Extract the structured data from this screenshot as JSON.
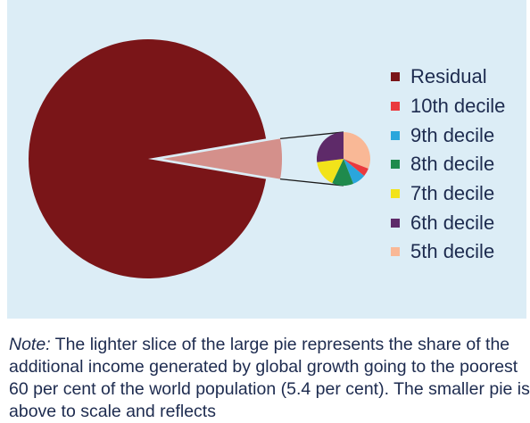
{
  "chart_data": {
    "type": "pie",
    "title": "",
    "main_pie": {
      "slices": [
        {
          "label": "Residual",
          "value": 94.6,
          "color": "#7a1518"
        },
        {
          "label": "Poorest 60 per cent",
          "value": 5.4,
          "color": "#d4908b"
        }
      ]
    },
    "detail_pie": {
      "slices": [
        {
          "label": "5th decile",
          "value": 31,
          "color": "#f9b896"
        },
        {
          "label": "10th decile",
          "value": 5,
          "color": "#ea3a3e"
        },
        {
          "label": "9th decile",
          "value": 8,
          "color": "#2aa6dc"
        },
        {
          "label": "8th decile",
          "value": 13,
          "color": "#1f8a4c"
        },
        {
          "label": "7th decile",
          "value": 16,
          "color": "#f2e31a"
        },
        {
          "label": "6th decile",
          "value": 27,
          "color": "#5e2a69"
        }
      ]
    },
    "legend": [
      {
        "label": "Residual",
        "color": "#7a1518"
      },
      {
        "label": "10th decile",
        "color": "#ea3a3e"
      },
      {
        "label": "9th decile",
        "color": "#2aa6dc"
      },
      {
        "label": "8th decile",
        "color": "#1f8a4c"
      },
      {
        "label": "7th decile",
        "color": "#f2e31a"
      },
      {
        "label": "6th decile",
        "color": "#5e2a69"
      },
      {
        "label": "5th decile",
        "color": "#f9b896"
      }
    ],
    "legend_position": "right"
  },
  "note": {
    "label": "Note:",
    "text": " The lighter slice of the large pie represents the share of the additional income generated by global growth going to the poorest 60 per cent of the world population (5.4 per cent). The smaller pie is above to scale and reflects"
  },
  "colors": {
    "panel_background": "#dcedf6",
    "text": "#1d2b4f"
  }
}
